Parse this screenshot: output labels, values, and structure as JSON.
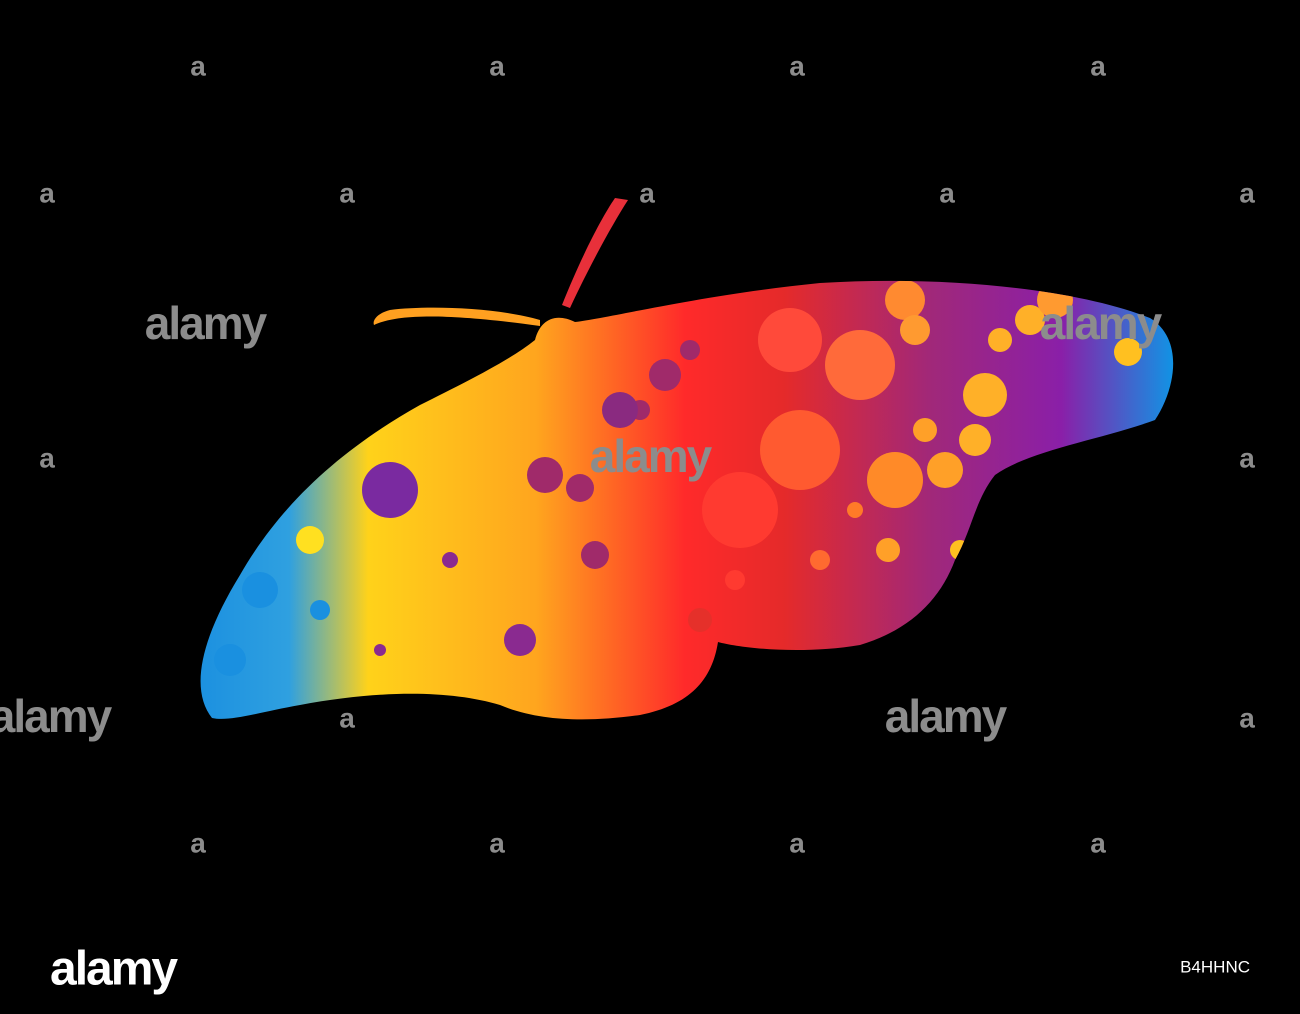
{
  "watermark": {
    "logo": "alamy",
    "mark": "a"
  },
  "footer": {
    "brand": "alamy",
    "image_id": "B4HHNC"
  }
}
